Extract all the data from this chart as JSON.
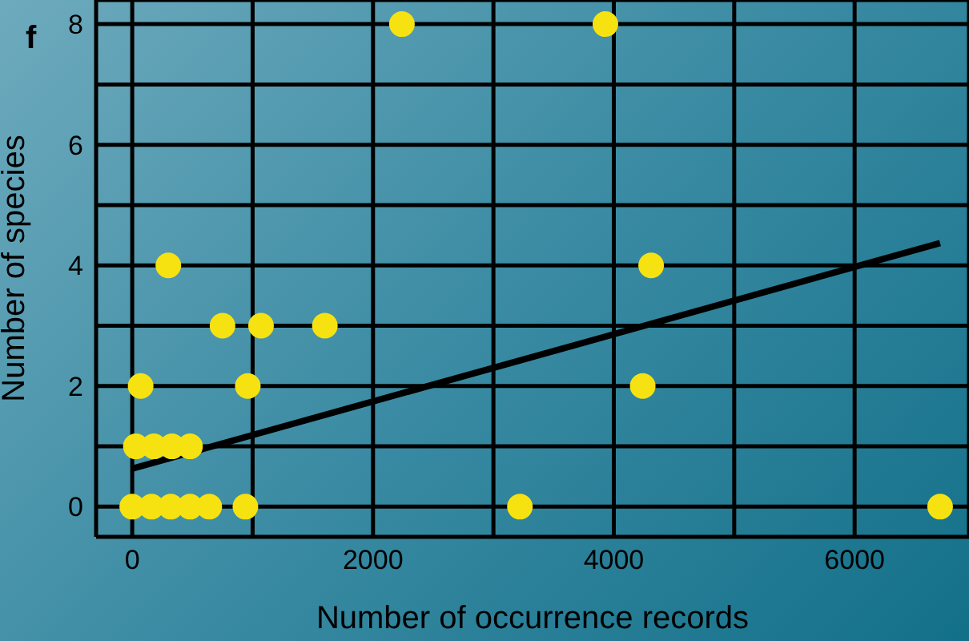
{
  "chart_data": {
    "type": "scatter",
    "title": "f",
    "xlabel": "Number of occurrence records",
    "ylabel": "Number of species",
    "xlim": [
      -300,
      6950
    ],
    "ylim": [
      -0.5,
      8.4
    ],
    "xticks": [
      0,
      {
        "value": 1000,
        "label": null
      },
      2000,
      {
        "value": 3000,
        "label": null
      },
      4000,
      {
        "value": 5000,
        "label": null
      },
      6000
    ],
    "yticks": [
      0,
      {
        "value": 1,
        "label": null
      },
      2,
      {
        "value": 3,
        "label": null
      },
      4,
      {
        "value": 5,
        "label": null
      },
      6,
      {
        "value": 7,
        "label": null
      },
      8
    ],
    "grid": true,
    "marker": "circle",
    "series": [
      {
        "color": "#f7e211",
        "x": [
          2240,
          3930,
          300,
          750,
          1070,
          1600,
          70,
          960,
          4240,
          4310,
          30,
          180,
          330,
          480,
          0,
          160,
          320,
          480,
          640,
          940,
          3220,
          6710
        ],
        "values": [
          8,
          8,
          4,
          3,
          3,
          3,
          2,
          2,
          2,
          4,
          1,
          1,
          1,
          1,
          0,
          0,
          0,
          0,
          0,
          0,
          0,
          0
        ]
      },
      {
        "type": "line",
        "color": "#000000",
        "marker": "none",
        "x": [
          0,
          6710
        ],
        "values": [
          0.63,
          4.37
        ]
      }
    ]
  }
}
